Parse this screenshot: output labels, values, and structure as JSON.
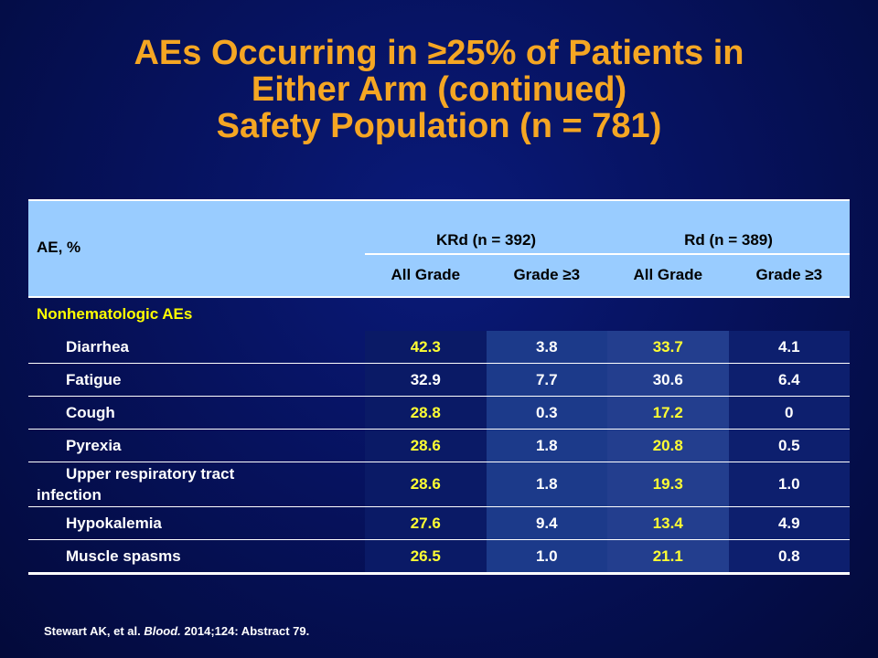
{
  "title": {
    "line1": "AEs Occurring in ≥25% of Patients in",
    "line2": "Either Arm (continued)",
    "line3": "Safety Population (n = 781)"
  },
  "table": {
    "row_header": "AE, %",
    "groups": [
      "KRd (n = 392)",
      "Rd (n = 389)"
    ],
    "subheaders": [
      "All Grade",
      "Grade ≥3",
      "All Grade",
      "Grade ≥3"
    ],
    "section_label": "Nonhematologic AEs",
    "rows": [
      {
        "name": "Diarrhea",
        "values": [
          "42.3",
          "3.8",
          "33.7",
          "4.1"
        ]
      },
      {
        "name": "Fatigue",
        "values": [
          "32.9",
          "7.7",
          "30.6",
          "6.4"
        ]
      },
      {
        "name": "Cough",
        "values": [
          "28.8",
          "0.3",
          "17.2",
          "0"
        ]
      },
      {
        "name": "Pyrexia",
        "values": [
          "28.6",
          "1.8",
          "20.8",
          "0.5"
        ]
      },
      {
        "name_line1": "Upper respiratory tract",
        "name_line2": "infection",
        "values": [
          "28.6",
          "1.8",
          "19.3",
          "1.0"
        ]
      },
      {
        "name": "Hypokalemia",
        "values": [
          "27.6",
          "9.4",
          "13.4",
          "4.9"
        ]
      },
      {
        "name": "Muscle spasms",
        "values": [
          "26.5",
          "1.0",
          "21.1",
          "0.8"
        ]
      }
    ]
  },
  "citation": {
    "authors": "Stewart AK, et al.",
    "journal": "Blood.",
    "details": "2014;124: Abstract 79."
  },
  "colors": {
    "title": "#f5a623",
    "header_bg": "#99ccff",
    "highlight_text": "#ffff00",
    "background": "#06125e"
  }
}
